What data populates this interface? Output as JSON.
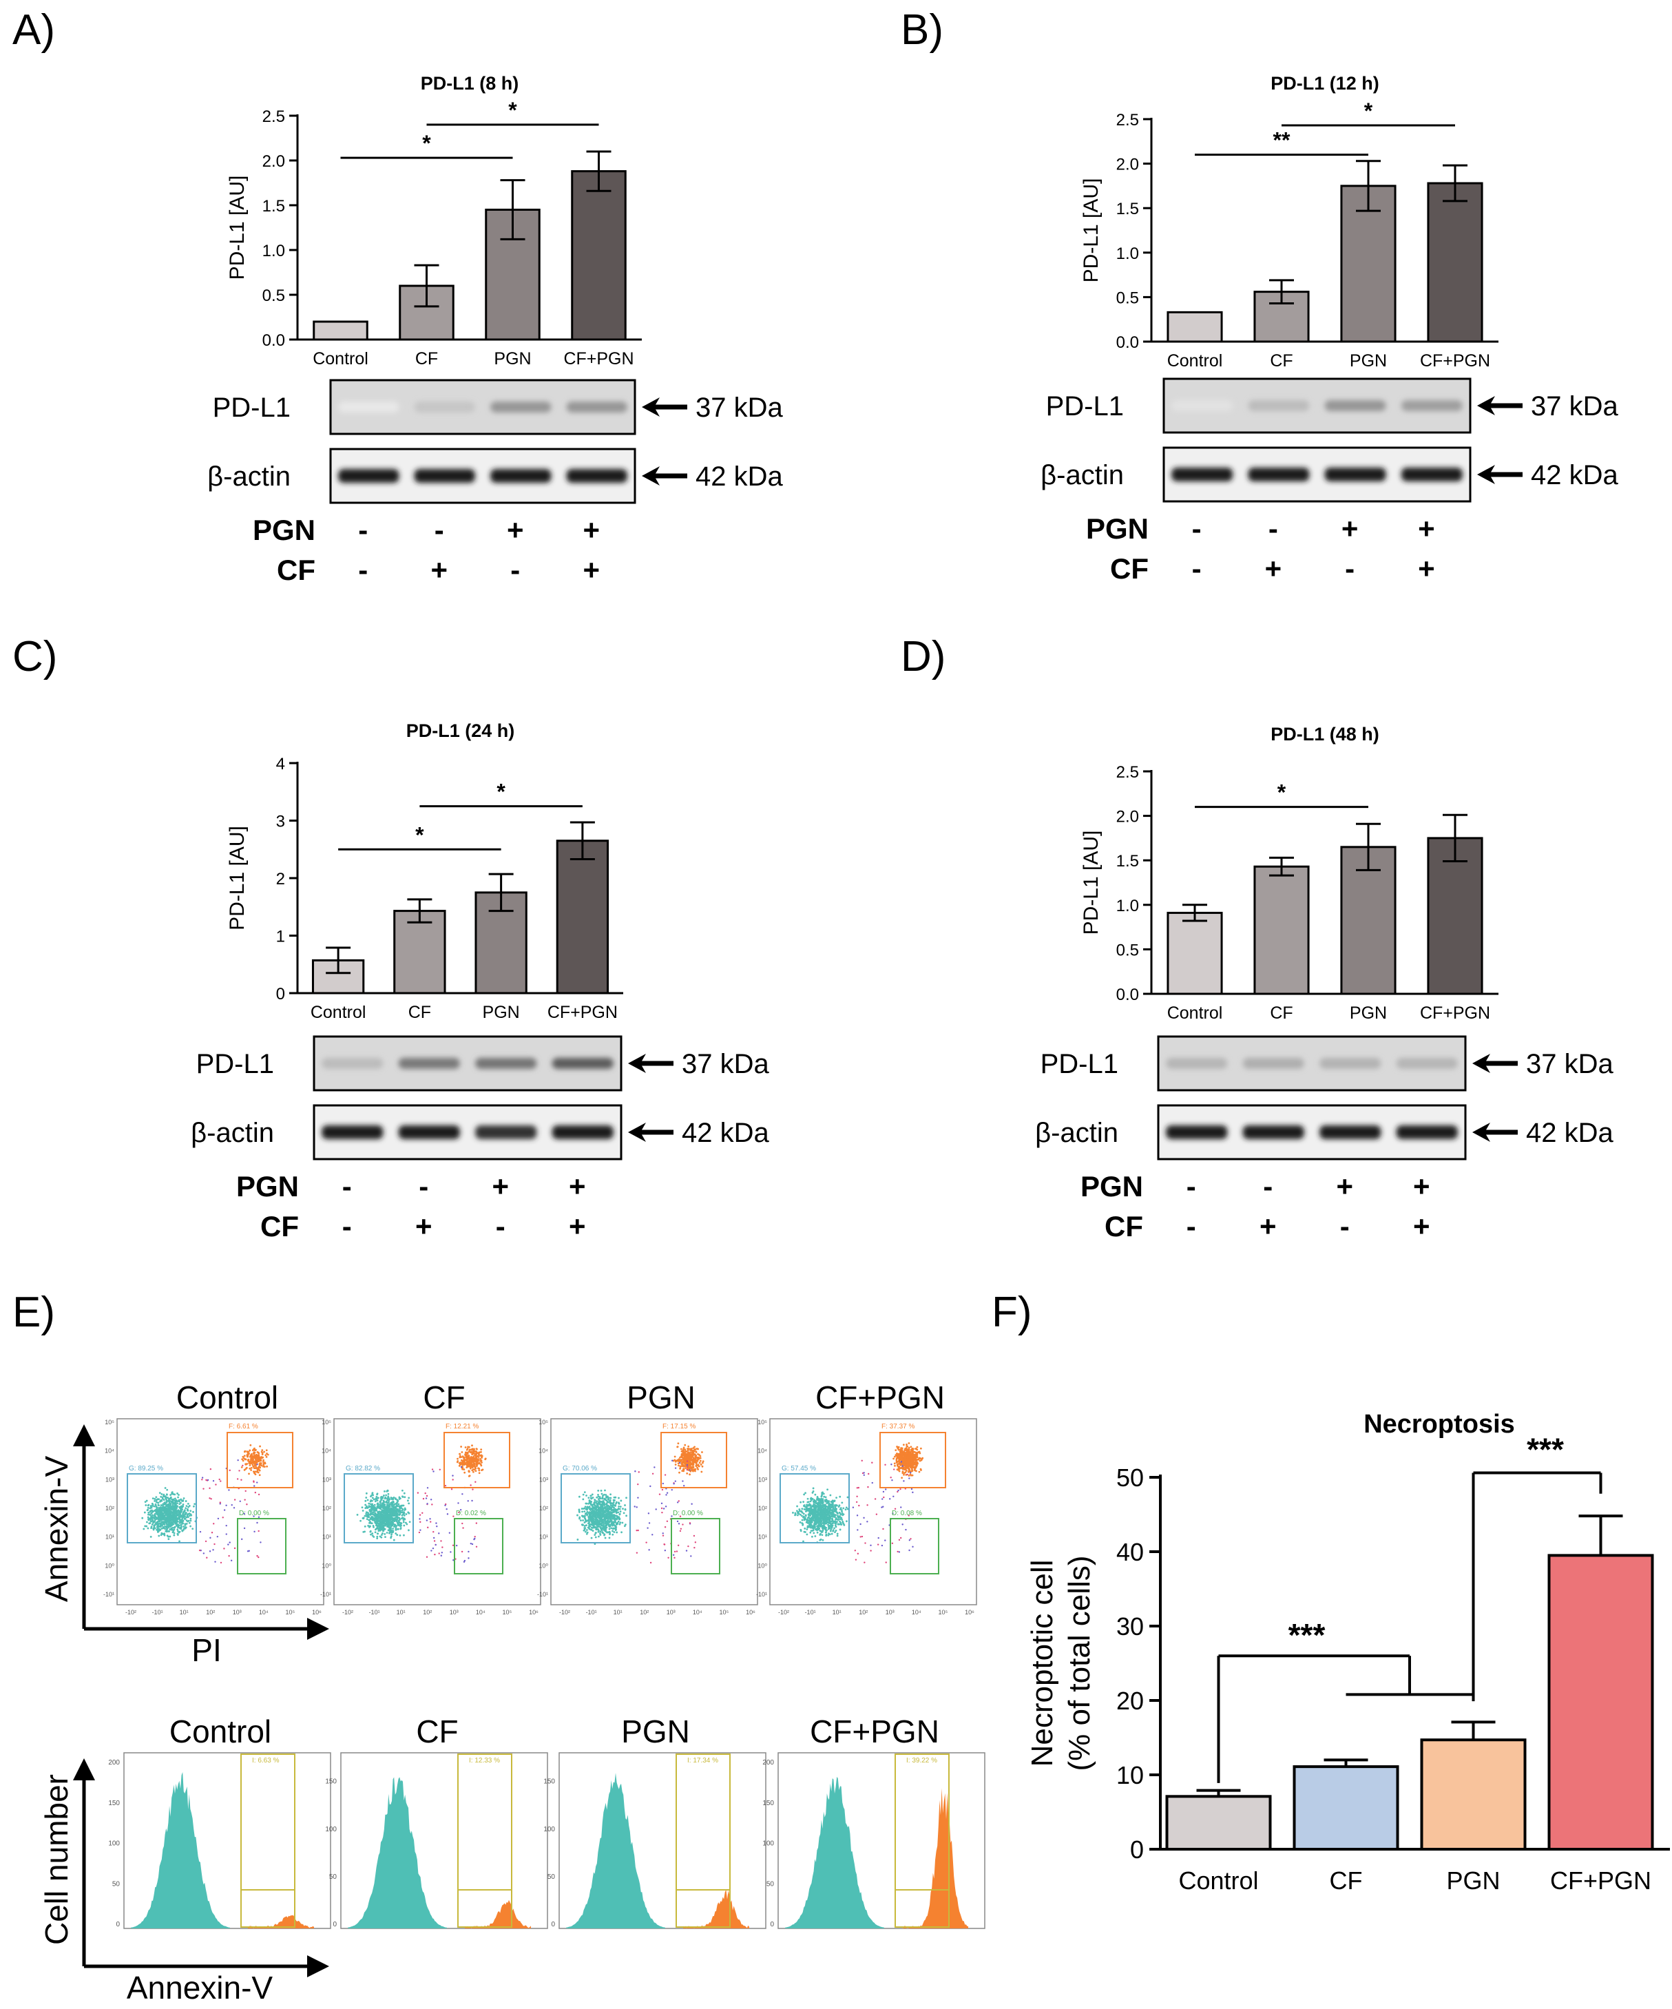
{
  "panel_labels": [
    "A)",
    "B)",
    "C)",
    "D)",
    "E)",
    "F)"
  ],
  "colors": {
    "control": "#d2cccc",
    "cf_grey": "#a39c9c",
    "pgn_grey": "#8a8282",
    "cfpgn_grey": "#5e5656",
    "f_control": "#d6d0d0",
    "f_cf": "#b9cce6",
    "f_pgn": "#f8c39c",
    "f_cfpgn": "#ec7478",
    "flow_live": "#4fbfb5",
    "flow_necro": "#f58230",
    "flow_gate_live": "#5aa9c9",
    "flow_gate_necro": "#f58230",
    "flow_gate_green": "#4caf50",
    "flow_gate_yellow": "#c8b93c"
  },
  "blot_panels": [
    {
      "ylabel": "PD-L1 [AU]",
      "chart_data": {
        "type": "bar",
        "title": "PD-L1 (8 h)",
        "ylabel": "PD-L1 [AU]",
        "categories": [
          "Control",
          "CF",
          "PGN",
          "CF+PGN"
        ],
        "values": [
          0.2,
          0.6,
          1.45,
          1.88
        ],
        "errors": [
          0,
          0.23,
          0.33,
          0.22
        ],
        "ylim": [
          0,
          2.5
        ],
        "yticks": [
          "0.0",
          "0.5",
          "1.0",
          "1.5",
          "2.0",
          "2.5"
        ],
        "significance": [
          {
            "from": 0,
            "to": 2,
            "label": "*",
            "y": 2.03
          },
          {
            "from": 1,
            "to": 3,
            "label": "*",
            "y": 2.4
          }
        ]
      },
      "blot": {
        "bands": [
          {
            "label": "PD-L1",
            "size": "37 kDa",
            "intensities": [
              0.12,
              0.3,
              0.55,
              0.55
            ]
          },
          {
            "label": "β-actin",
            "size": "42 kDa",
            "intensities": [
              1,
              1,
              1,
              1
            ]
          }
        ],
        "treatments": [
          {
            "label": "PGN",
            "signs": [
              "-",
              "-",
              "+",
              "+"
            ]
          },
          {
            "label": "CF",
            "signs": [
              "-",
              "+",
              "-",
              "+"
            ]
          }
        ]
      }
    },
    {
      "ylabel": "PD-L1 [AU]",
      "chart_data": {
        "type": "bar",
        "title": "PD-L1 (12 h)",
        "ylabel": "PD-L1 [AU]",
        "categories": [
          "Control",
          "CF",
          "PGN",
          "CF+PGN"
        ],
        "values": [
          0.33,
          0.56,
          1.75,
          1.78
        ],
        "errors": [
          0,
          0.13,
          0.28,
          0.2
        ],
        "ylim": [
          0,
          2.5
        ],
        "yticks": [
          "0.0",
          "0.5",
          "1.0",
          "1.5",
          "2.0",
          "2.5"
        ],
        "significance": [
          {
            "from": 0,
            "to": 2,
            "label": "**",
            "y": 2.1
          },
          {
            "from": 1,
            "to": 3,
            "label": "*",
            "y": 2.43
          }
        ]
      },
      "blot": {
        "bands": [
          {
            "label": "PD-L1",
            "size": "37 kDa",
            "intensities": [
              0.15,
              0.35,
              0.55,
              0.5
            ]
          },
          {
            "label": "β-actin",
            "size": "42 kDa",
            "intensities": [
              1,
              1,
              1,
              1
            ]
          }
        ],
        "treatments": [
          {
            "label": "PGN",
            "signs": [
              "-",
              "-",
              "+",
              "+"
            ]
          },
          {
            "label": "CF",
            "signs": [
              "-",
              "+",
              "-",
              "+"
            ]
          }
        ]
      }
    },
    {
      "ylabel": "PD-L1 [AU]",
      "chart_data": {
        "type": "bar",
        "title": "PD-L1 (24 h)",
        "ylabel": "PD-L1 [AU]",
        "categories": [
          "Control",
          "CF",
          "PGN",
          "CF+PGN"
        ],
        "values": [
          0.57,
          1.43,
          1.75,
          2.65
        ],
        "errors": [
          0.22,
          0.2,
          0.32,
          0.32
        ],
        "ylim": [
          0,
          4
        ],
        "yticks": [
          "0",
          "1",
          "2",
          "3",
          "4"
        ],
        "significance": [
          {
            "from": 0,
            "to": 2,
            "label": "*",
            "y": 2.5
          },
          {
            "from": 1,
            "to": 3,
            "label": "*",
            "y": 3.25
          }
        ]
      },
      "blot": {
        "bands": [
          {
            "label": "PD-L1",
            "size": "37 kDa",
            "intensities": [
              0.35,
              0.7,
              0.72,
              0.85
            ]
          },
          {
            "label": "β-actin",
            "size": "42 kDa",
            "intensities": [
              1,
              1,
              0.9,
              1
            ]
          }
        ],
        "treatments": [
          {
            "label": "PGN",
            "signs": [
              "-",
              "-",
              "+",
              "+"
            ]
          },
          {
            "label": "CF",
            "signs": [
              "-",
              "+",
              "-",
              "+"
            ]
          }
        ]
      }
    },
    {
      "ylabel": "PD-L1 [AU]",
      "chart_data": {
        "type": "bar",
        "title": "PD-L1 (48 h)",
        "ylabel": "PD-L1 [AU]",
        "categories": [
          "Control",
          "CF",
          "PGN",
          "CF+PGN"
        ],
        "values": [
          0.91,
          1.43,
          1.65,
          1.75
        ],
        "errors": [
          0.09,
          0.1,
          0.26,
          0.26
        ],
        "ylim": [
          0,
          2.5
        ],
        "yticks": [
          "0.0",
          "0.5",
          "1.0",
          "1.5",
          "2.0",
          "2.5"
        ],
        "significance": [
          {
            "from": 0,
            "to": 2,
            "label": "*",
            "y": 2.1
          }
        ]
      },
      "blot": {
        "bands": [
          {
            "label": "PD-L1",
            "size": "37 kDa",
            "intensities": [
              0.38,
              0.42,
              0.4,
              0.38
            ]
          },
          {
            "label": "β-actin",
            "size": "42 kDa",
            "intensities": [
              1,
              1,
              1,
              1
            ]
          }
        ],
        "treatments": [
          {
            "label": "PGN",
            "signs": [
              "-",
              "-",
              "+",
              "+"
            ]
          },
          {
            "label": "CF",
            "signs": [
              "-",
              "+",
              "-",
              "+"
            ]
          }
        ]
      }
    }
  ],
  "flow": {
    "dot_titles": [
      "Control",
      "CF",
      "PGN",
      "CF+PGN"
    ],
    "hist_titles": [
      "Control",
      "CF",
      "PGN",
      "CF+PGN"
    ],
    "dot_axes": {
      "y": "Annexin-V",
      "x": "PI"
    },
    "hist_axes": {
      "y": "Cell number",
      "x": "Annexin-V"
    },
    "dot_gates": [
      {
        "F": "F: 6.61 %",
        "G": "G: 89.25 %",
        "D": "D: 0.00 %"
      },
      {
        "F": "F: 12.21 %",
        "G": "G: 82.82 %",
        "D": "D: 0.02 %"
      },
      {
        "F": "F: 17.15 %",
        "G": "G: 70.06 %",
        "D": "D: 0.00 %"
      },
      {
        "F": "F: 37.37 %",
        "G": "G: 57.45 %",
        "D": "D: 0.08 %"
      }
    ],
    "dot_necro_fraction": [
      0.066,
      0.122,
      0.172,
      0.374
    ],
    "dot_tick_labels_y": [
      "10⁵",
      "10⁴",
      "10³",
      "10²",
      "10¹",
      "10⁰",
      "-10¹"
    ],
    "dot_tick_labels_x": [
      "-10²",
      "-10¹",
      "10¹",
      "10²",
      "10³",
      "10⁴",
      "10⁵",
      "10⁶"
    ],
    "hist_gates": [
      "I: 6.63 %",
      "I: 12.33 %",
      "I: 17.34 %",
      "I: 39.22 %"
    ],
    "hist_yticks": [
      [
        "0",
        "50",
        "100",
        "150",
        "200"
      ],
      [
        "0",
        "50",
        "100",
        "150"
      ],
      [
        "0",
        "50",
        "100",
        "150"
      ],
      [
        "0",
        "50",
        "100",
        "150",
        "200"
      ]
    ],
    "hist_peak_ratio": [
      0.08,
      0.18,
      0.25,
      0.95
    ]
  },
  "panel_f": {
    "chart_data": {
      "type": "bar",
      "title": "Necroptosis",
      "ylabel_lines": [
        "Necroptotic cell",
        "(% of total cells)"
      ],
      "categories": [
        "Control",
        "CF",
        "PGN",
        "CF+PGN"
      ],
      "values": [
        7.1,
        11.1,
        14.7,
        39.5
      ],
      "errors": [
        0.8,
        0.9,
        2.4,
        5.3
      ],
      "ylim": [
        0,
        50
      ],
      "yticks": [
        "0",
        "10",
        "20",
        "30",
        "40",
        "50"
      ],
      "significance": [
        {
          "type": "nested",
          "label": "***"
        },
        {
          "from": 2,
          "to": 3,
          "label": "***"
        }
      ]
    }
  }
}
